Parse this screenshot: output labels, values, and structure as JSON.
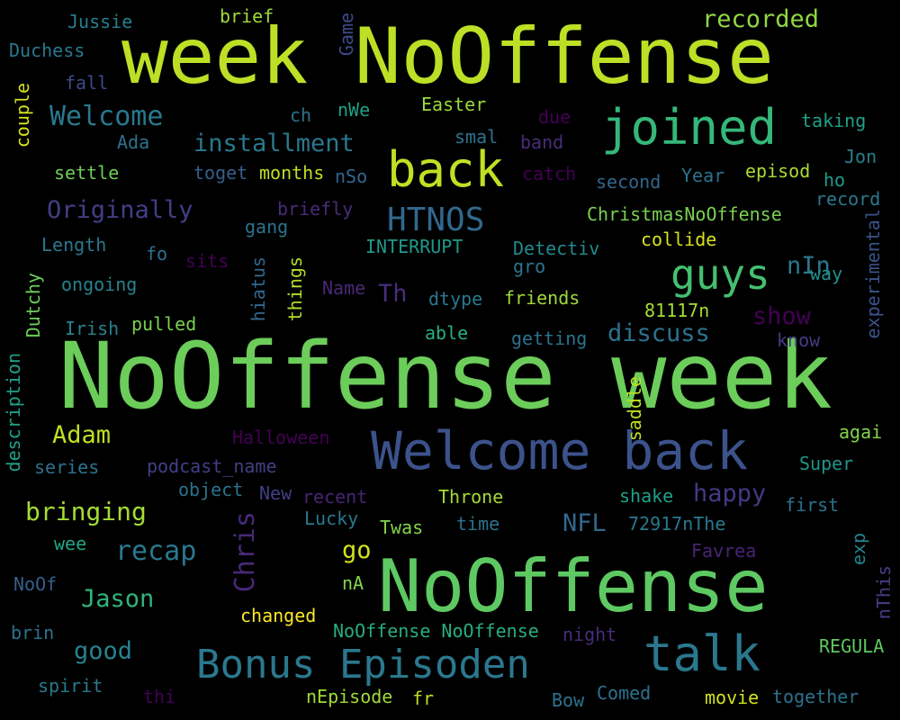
{
  "words": [
    {
      "text": "week NoOffense",
      "color": "#bddf26"
    },
    {
      "text": "NoOffense week",
      "color": "#6ccd5a"
    },
    {
      "text": "NoOffense",
      "color": "#5ec962"
    },
    {
      "text": "Welcome back",
      "color": "#3b528b"
    },
    {
      "text": "joined",
      "color": "#35b779"
    },
    {
      "text": "back",
      "color": "#c2df23"
    },
    {
      "text": "talk",
      "color": "#2a788e"
    },
    {
      "text": "Bonus Episoden",
      "color": "#2a788e"
    },
    {
      "text": "guys",
      "color": "#44bf70"
    },
    {
      "text": "HTNOS",
      "color": "#31688e"
    },
    {
      "text": "Welcome",
      "color": "#2a788e"
    },
    {
      "text": "installment",
      "color": "#2a788e"
    },
    {
      "text": "recorded",
      "color": "#90d743"
    },
    {
      "text": "Originally",
      "color": "#433e85"
    },
    {
      "text": "recap",
      "color": "#2a788e"
    },
    {
      "text": "bringing",
      "color": "#a5db36"
    },
    {
      "text": "Adam",
      "color": "#c2df23"
    },
    {
      "text": "Jason",
      "color": "#2fb47c"
    },
    {
      "text": "good",
      "color": "#26828e"
    },
    {
      "text": "Chris",
      "color": "#482878"
    },
    {
      "text": "go",
      "color": "#d2e21b"
    },
    {
      "text": "NFL",
      "color": "#31688e"
    },
    {
      "text": "discuss",
      "color": "#2c728e"
    },
    {
      "text": "show",
      "color": "#440154"
    },
    {
      "text": "happy",
      "color": "#443983"
    },
    {
      "text": "Th",
      "color": "#472d7b"
    },
    {
      "text": "nIn",
      "color": "#2a788e"
    },
    {
      "text": "Jussie",
      "color": "#277f8e"
    },
    {
      "text": "brief",
      "color": "#a0da39"
    },
    {
      "text": "Duchess",
      "color": "#2a788e"
    },
    {
      "text": "fall",
      "color": "#3e4a89"
    },
    {
      "text": "couple",
      "color": "#d2e21b"
    },
    {
      "text": "Game",
      "color": "#3e4a89"
    },
    {
      "text": "ch",
      "color": "#2c728e"
    },
    {
      "text": "nWe",
      "color": "#1fa188"
    },
    {
      "text": "Easter",
      "color": "#9bd93c"
    },
    {
      "text": "due",
      "color": "#440154"
    },
    {
      "text": "band",
      "color": "#472d7b"
    },
    {
      "text": "taking",
      "color": "#1fa188"
    },
    {
      "text": "Ada",
      "color": "#2c728e"
    },
    {
      "text": "smal",
      "color": "#2c728e"
    },
    {
      "text": "Jon",
      "color": "#277f8e"
    },
    {
      "text": "settle",
      "color": "#6ece58"
    },
    {
      "text": "toget",
      "color": "#355f8d"
    },
    {
      "text": "months",
      "color": "#bddf26"
    },
    {
      "text": "nSo",
      "color": "#31688e"
    },
    {
      "text": "catch",
      "color": "#440154"
    },
    {
      "text": "Year",
      "color": "#2c728e"
    },
    {
      "text": "episod",
      "color": "#a8db34"
    },
    {
      "text": "ho",
      "color": "#1e9b8a"
    },
    {
      "text": "second",
      "color": "#31688e"
    },
    {
      "text": "record",
      "color": "#2a788e"
    },
    {
      "text": "briefly",
      "color": "#472c7a"
    },
    {
      "text": "gang",
      "color": "#2c728e"
    },
    {
      "text": "ChristmasNoOffense",
      "color": "#7ad151"
    },
    {
      "text": "Length",
      "color": "#2a788e"
    },
    {
      "text": "fo",
      "color": "#2c728e"
    },
    {
      "text": "sits",
      "color": "#440154"
    },
    {
      "text": "INTERRUPT",
      "color": "#1f998a"
    },
    {
      "text": "Detectiv",
      "color": "#23898e"
    },
    {
      "text": "collide",
      "color": "#d8e219"
    },
    {
      "text": "experimental",
      "color": "#3b528b"
    },
    {
      "text": "gro",
      "color": "#2c728e"
    },
    {
      "text": "way",
      "color": "#21918c"
    },
    {
      "text": "ongoing",
      "color": "#26828e"
    },
    {
      "text": "hiatus",
      "color": "#31688e"
    },
    {
      "text": "things",
      "color": "#b5de2b"
    },
    {
      "text": "Name",
      "color": "#482878"
    },
    {
      "text": "dtype",
      "color": "#2a788e"
    },
    {
      "text": "friends",
      "color": "#9fda3a"
    },
    {
      "text": "Dutchy",
      "color": "#6ccd5a"
    },
    {
      "text": "Irish",
      "color": "#26828e"
    },
    {
      "text": "pulled",
      "color": "#7ad151"
    },
    {
      "text": "able",
      "color": "#28ae80"
    },
    {
      "text": "81117n",
      "color": "#a5db36"
    },
    {
      "text": "getting",
      "color": "#2c728e"
    },
    {
      "text": "know",
      "color": "#443a83"
    },
    {
      "text": "saddle",
      "color": "#bddf26"
    },
    {
      "text": "description",
      "color": "#1fa188"
    },
    {
      "text": "Halloween",
      "color": "#440154"
    },
    {
      "text": "agai",
      "color": "#84d44b"
    },
    {
      "text": "series",
      "color": "#2c728e"
    },
    {
      "text": "podcast_name",
      "color": "#433e85"
    },
    {
      "text": "Super",
      "color": "#1f958b"
    },
    {
      "text": "object",
      "color": "#2c728e"
    },
    {
      "text": "New",
      "color": "#433e85"
    },
    {
      "text": "recent",
      "color": "#482475"
    },
    {
      "text": "Throne",
      "color": "#a5db36"
    },
    {
      "text": "shake",
      "color": "#1fa188"
    },
    {
      "text": "first",
      "color": "#2c728e"
    },
    {
      "text": "Lucky",
      "color": "#2a788e"
    },
    {
      "text": "Twas",
      "color": "#84d44b"
    },
    {
      "text": "time",
      "color": "#2c728e"
    },
    {
      "text": "72917nThe",
      "color": "#2a788e"
    },
    {
      "text": "wee",
      "color": "#21a685"
    },
    {
      "text": "Favrea",
      "color": "#482475"
    },
    {
      "text": "exp",
      "color": "#26828e"
    },
    {
      "text": "NoOf",
      "color": "#355f8d"
    },
    {
      "text": "nA",
      "color": "#84d44b"
    },
    {
      "text": "nThis",
      "color": "#433e85"
    },
    {
      "text": "changed",
      "color": "#fde725"
    },
    {
      "text": "brin",
      "color": "#2c728e"
    },
    {
      "text": "NoOffense NoOffense",
      "color": "#28ae80"
    },
    {
      "text": "night",
      "color": "#472d7b"
    },
    {
      "text": "REGULA",
      "color": "#5ec962"
    },
    {
      "text": "spirit",
      "color": "#2a788e"
    },
    {
      "text": "thi",
      "color": "#440154"
    },
    {
      "text": "nEpisode",
      "color": "#9fda3a"
    },
    {
      "text": "fr",
      "color": "#bddf26"
    },
    {
      "text": "Bow",
      "color": "#2c728e"
    },
    {
      "text": "Comed",
      "color": "#2c728e"
    },
    {
      "text": "movie",
      "color": "#d2e21b"
    },
    {
      "text": "together",
      "color": "#2c728e"
    }
  ]
}
